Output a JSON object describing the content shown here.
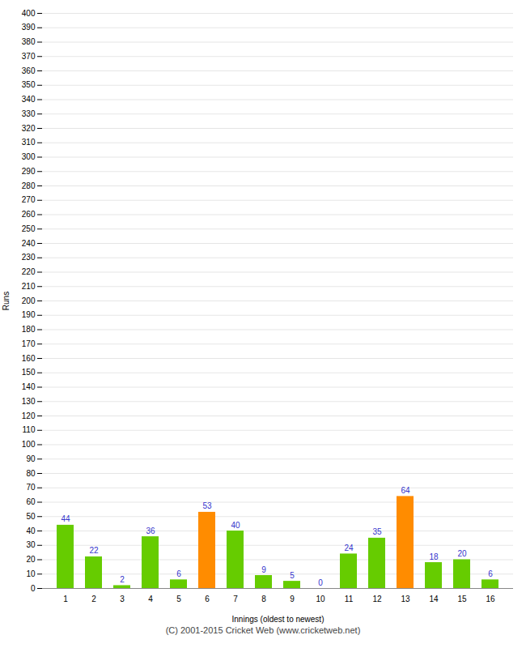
{
  "chart_data": {
    "type": "bar",
    "xlabel": "Innings (oldest to newest)",
    "ylabel": "Runs",
    "categories": [
      "1",
      "2",
      "3",
      "4",
      "5",
      "6",
      "7",
      "8",
      "9",
      "10",
      "11",
      "12",
      "13",
      "14",
      "15",
      "16"
    ],
    "values": [
      44,
      22,
      2,
      36,
      6,
      53,
      40,
      9,
      5,
      0,
      24,
      35,
      64,
      18,
      20,
      6
    ],
    "colors": [
      "#66cc00",
      "#66cc00",
      "#66cc00",
      "#66cc00",
      "#66cc00",
      "#ff8c00",
      "#66cc00",
      "#66cc00",
      "#66cc00",
      "#66cc00",
      "#66cc00",
      "#66cc00",
      "#ff8c00",
      "#66cc00",
      "#66cc00",
      "#66cc00"
    ],
    "ylim": [
      0,
      400
    ],
    "yticks": [
      0,
      10,
      20,
      30,
      40,
      50,
      60,
      70,
      80,
      90,
      100,
      110,
      120,
      130,
      140,
      150,
      160,
      170,
      180,
      190,
      200,
      210,
      220,
      230,
      240,
      250,
      260,
      270,
      280,
      290,
      300,
      310,
      320,
      330,
      340,
      350,
      360,
      370,
      380,
      390,
      400
    ],
    "grid": true,
    "data_labels": true,
    "annotations": [
      "(C) 2001-2015 Cricket Web (www.cricketweb.net)"
    ]
  }
}
